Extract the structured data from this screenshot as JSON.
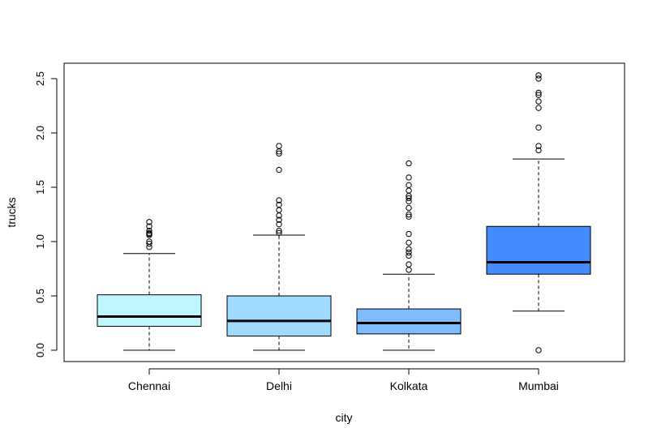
{
  "chart_data": {
    "type": "boxplot",
    "xlabel": "city",
    "ylabel": "trucks",
    "ylim": [
      -0.1,
      2.6
    ],
    "yticks": [
      "0.0",
      "0.5",
      "1.0",
      "1.5",
      "2.0",
      "2.5"
    ],
    "categories": [
      "Chennai",
      "Delhi",
      "Kolkata",
      "Mumbai"
    ],
    "colors": [
      "#BFF6FF",
      "#A0DAFF",
      "#7EBBFF",
      "#448BFF"
    ],
    "boxes": [
      {
        "whisker_low": 0.0,
        "q1": 0.22,
        "median": 0.31,
        "q3": 0.51,
        "whisker_high": 0.89,
        "outliers": [
          0.95,
          0.98,
          1.0,
          1.06,
          1.07,
          1.08,
          1.1,
          1.14,
          1.18
        ]
      },
      {
        "whisker_low": 0.0,
        "q1": 0.13,
        "median": 0.27,
        "q3": 0.5,
        "whisker_high": 1.06,
        "outliers": [
          1.08,
          1.1,
          1.16,
          1.2,
          1.24,
          1.29,
          1.34,
          1.38,
          1.66,
          1.81,
          1.83,
          1.88
        ]
      },
      {
        "whisker_low": 0.0,
        "q1": 0.15,
        "median": 0.25,
        "q3": 0.38,
        "whisker_high": 0.7,
        "outliers": [
          0.74,
          0.79,
          0.87,
          0.9,
          0.93,
          0.99,
          1.07,
          1.23,
          1.25,
          1.31,
          1.37,
          1.4,
          1.42,
          1.47,
          1.52,
          1.59,
          1.72
        ]
      },
      {
        "whisker_low": 0.36,
        "q1": 0.7,
        "median": 0.81,
        "q3": 1.14,
        "whisker_high": 1.76,
        "outliers": [
          0.0,
          1.84,
          1.88,
          2.05,
          2.23,
          2.29,
          2.35,
          2.37,
          2.5,
          2.53
        ]
      }
    ]
  }
}
